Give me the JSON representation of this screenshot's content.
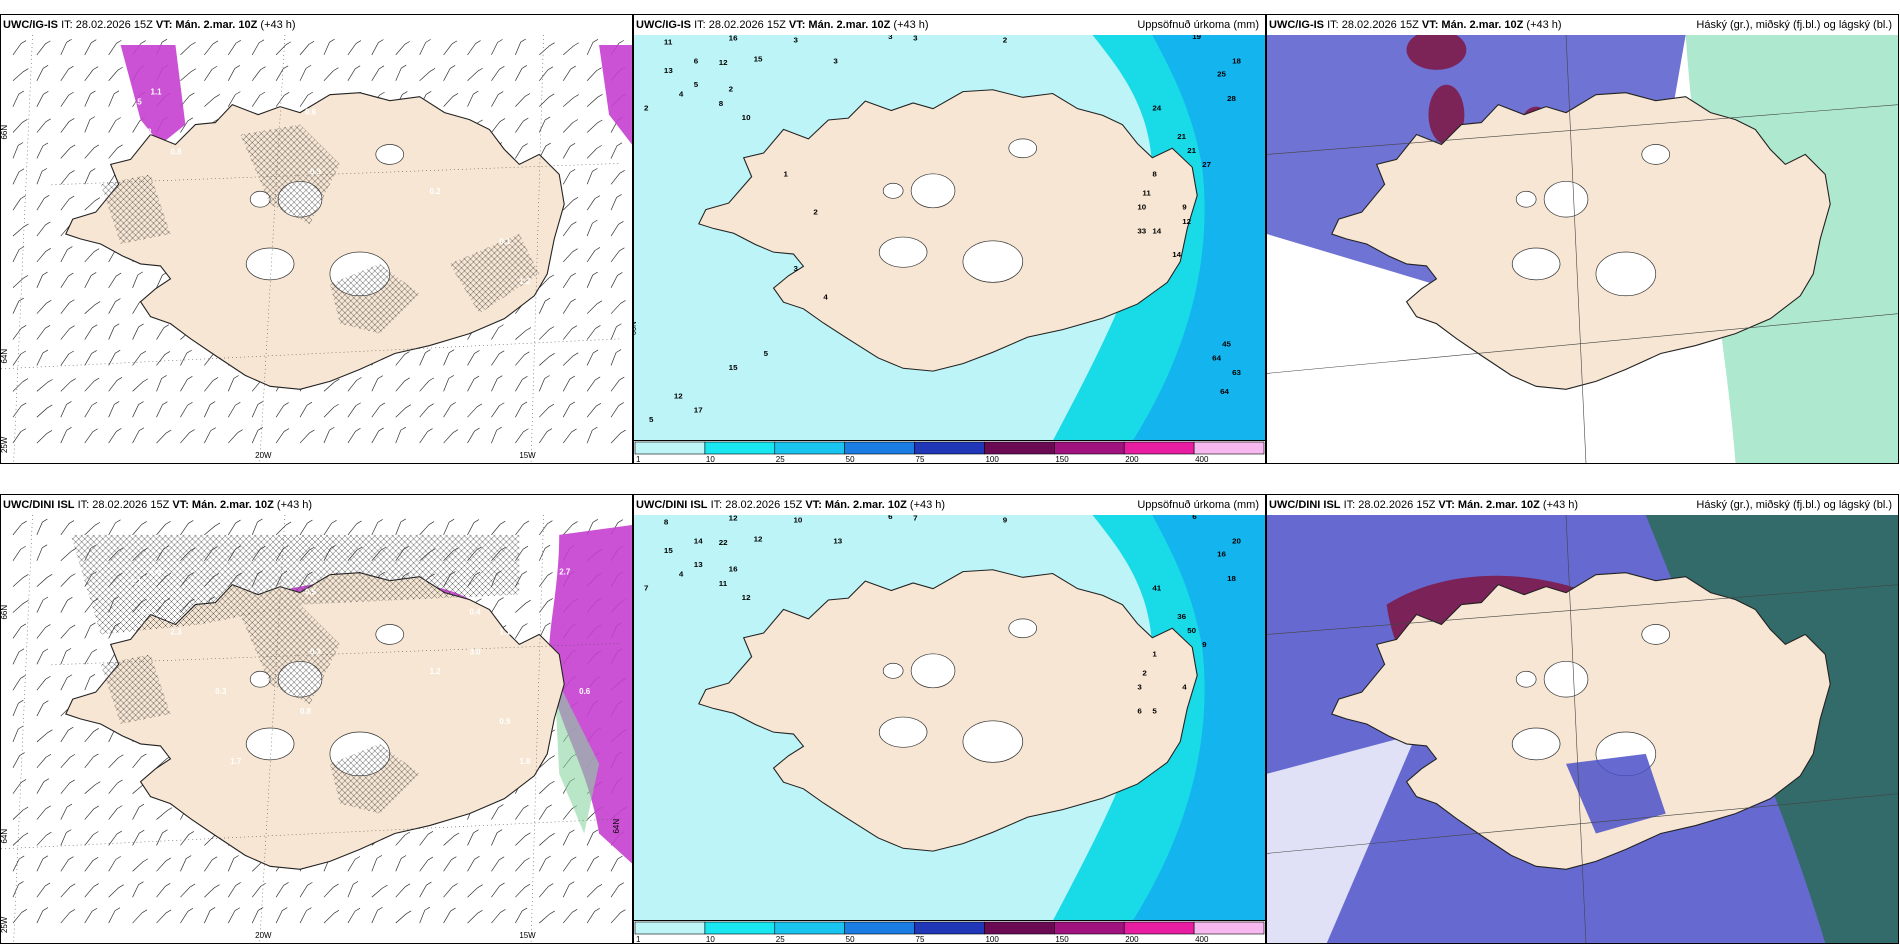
{
  "panels": [
    {
      "id": "p1",
      "model": "UWC/IG-IS",
      "it": "IT: 28.02.2026 15Z",
      "vt": "VT: Mán. 2.mar. 10Z",
      "lead": "(+43 h)",
      "right": "",
      "type": "wind",
      "lat_labels": [
        "66N",
        "64N",
        "25W"
      ],
      "lon_labels": [
        "20W",
        "15W"
      ],
      "values": [
        "0.3",
        "0.8",
        "1.1",
        "1.2",
        "0.5",
        "0.6",
        "0.3",
        "1.2",
        "0.2",
        "0.1"
      ]
    },
    {
      "id": "p2",
      "model": "UWC/IG-IS",
      "it": "IT: 28.02.2026 15Z",
      "vt": "VT: Mán. 2.mar. 10Z",
      "lead": "(+43 h)",
      "right": "Uppsöfnuð úrkoma (mm)",
      "type": "precip",
      "lat_labels": [
        "66N"
      ],
      "values": [
        "11",
        "16",
        "3",
        "3",
        "3",
        "3",
        "2",
        "19",
        "13",
        "6",
        "12",
        "15",
        "25",
        "18",
        "2",
        "5",
        "8",
        "10",
        "28",
        "4",
        "2",
        "24",
        "21",
        "21",
        "27",
        "8",
        "11",
        "10",
        "9",
        "14",
        "33",
        "12",
        "14",
        "17",
        "5",
        "12",
        "45",
        "64",
        "63",
        "64",
        "1",
        "2",
        "3",
        "4",
        "5",
        "15"
      ]
    },
    {
      "id": "p3",
      "model": "UWC/IG-IS",
      "it": "IT: 28.02.2026 15Z",
      "vt": "VT: Mán. 2.mar. 10Z",
      "lead": "(+43 h)",
      "right": "Háský (gr.), miðský (fj.bl.) og lágský (bl.)",
      "type": "cloud"
    },
    {
      "id": "p4",
      "model": "UWC/DINI ISL",
      "it": "IT: 28.02.2026 15Z",
      "vt": "VT: Mán. 2.mar. 10Z",
      "lead": "(+43 h)",
      "right": "",
      "type": "wind",
      "lat_labels": [
        "66N",
        "64N",
        "25W",
        "64N"
      ],
      "lon_labels": [
        "20W",
        "15W"
      ],
      "values": [
        "2.7",
        "2.3",
        "1.9",
        "1.5",
        "1.1",
        "0.5",
        "0.2",
        "1.8",
        "1.2",
        "0.9",
        "0.4",
        "0.3",
        "1.7",
        "0.8",
        "3.0",
        "0.6",
        "1.1"
      ]
    },
    {
      "id": "p5",
      "model": "UWC/DINI ISL",
      "it": "IT: 28.02.2026 15Z",
      "vt": "VT: Mán. 2.mar. 10Z",
      "lead": "(+43 h)",
      "right": "Uppsöfnuð úrkoma (mm)",
      "type": "precip",
      "values": [
        "8",
        "12",
        "10",
        "13",
        "6",
        "7",
        "9",
        "6",
        "15",
        "14",
        "22",
        "12",
        "16",
        "20",
        "16",
        "13",
        "11",
        "12",
        "18",
        "4",
        "7",
        "41",
        "36",
        "50",
        "9",
        "1",
        "2",
        "3",
        "4",
        "5",
        "6"
      ]
    },
    {
      "id": "p6",
      "model": "UWC/DINI ISL",
      "it": "IT: 28.02.2026 15Z",
      "vt": "VT: Mán. 2.mar. 10Z",
      "lead": "(+43 h)",
      "right": "Háský (gr.), miðský (fj.bl.) og lágský (bl.)",
      "type": "cloud"
    }
  ],
  "colorbar": {
    "ticks": [
      "1",
      "10",
      "25",
      "50",
      "75",
      "100",
      "150",
      "200",
      "400"
    ],
    "colors": [
      "#bff5f9",
      "#19e6f0",
      "#19c5f0",
      "#1b7de4",
      "#2038b8",
      "#6a0a55",
      "#a0127e",
      "#e81da2",
      "#f7b7ef"
    ]
  },
  "colors": {
    "land": "#f7e6d3",
    "sea_light": "#bdf4f7",
    "sea_mid": "#19dbe8",
    "sea_dark": "#14b4ee",
    "low_cloud": "#4b50c8",
    "mid_cloud": "#7d1b4a",
    "high_cloud": "#3fd0a0",
    "purple": "#c63fd0"
  }
}
